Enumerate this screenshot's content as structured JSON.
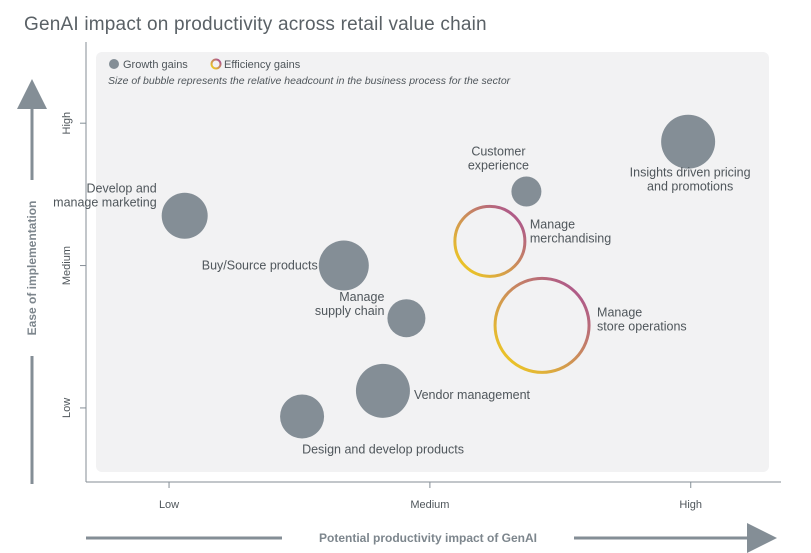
{
  "title": "GenAI impact on productivity across retail value chain",
  "chart_data": {
    "type": "bubble",
    "xlabel": "Potential productivity impact of GenAI",
    "ylabel": "Ease of implementation",
    "x_ticks": [
      "Low",
      "Medium",
      "High"
    ],
    "y_ticks": [
      "Low",
      "Medium",
      "High"
    ],
    "xlim": [
      0.72,
      3.3
    ],
    "ylim": [
      0.55,
      3.5
    ],
    "legend": {
      "placement": "top-left",
      "items": [
        {
          "label": "Growth gains",
          "kind": "growth"
        },
        {
          "label": "Efficiency gains",
          "kind": "efficiency"
        }
      ],
      "note": "Size of bubble represents the relative headcount in the business process for the sector"
    },
    "colors": {
      "growth": "#848e96",
      "efficiency_start": "#f5d617",
      "efficiency_end": "#a4479a",
      "plot_bg": "#f2f2f3",
      "axis": "#848e96",
      "text": "#4f565b"
    },
    "series": [
      {
        "label_lines": [
          "Insights driven pricing",
          "and promotions"
        ],
        "x": 2.99,
        "y": 2.87,
        "size": 27,
        "kind": "growth"
      },
      {
        "label_lines": [
          "Customer",
          "experience"
        ],
        "x": 2.37,
        "y": 2.52,
        "size": 15,
        "kind": "growth"
      },
      {
        "label_lines": [
          "Develop and",
          "manage marketing"
        ],
        "x": 1.06,
        "y": 2.35,
        "size": 23,
        "kind": "growth"
      },
      {
        "label_lines": [
          "Manage",
          "merchandising"
        ],
        "x": 2.23,
        "y": 2.17,
        "size": 35,
        "kind": "efficiency"
      },
      {
        "label_lines": [
          "Buy/Source products"
        ],
        "x": 1.67,
        "y": 2.0,
        "size": 25,
        "kind": "growth"
      },
      {
        "label_lines": [
          "Manage",
          "supply chain"
        ],
        "x": 1.91,
        "y": 1.63,
        "size": 19,
        "kind": "growth"
      },
      {
        "label_lines": [
          "Manage",
          "store operations"
        ],
        "x": 2.43,
        "y": 1.58,
        "size": 47,
        "kind": "efficiency"
      },
      {
        "label_lines": [
          "Vendor management"
        ],
        "x": 1.82,
        "y": 1.12,
        "size": 27,
        "kind": "growth"
      },
      {
        "label_lines": [
          "Design and develop products"
        ],
        "x": 1.51,
        "y": 0.94,
        "size": 22,
        "kind": "growth"
      }
    ]
  }
}
